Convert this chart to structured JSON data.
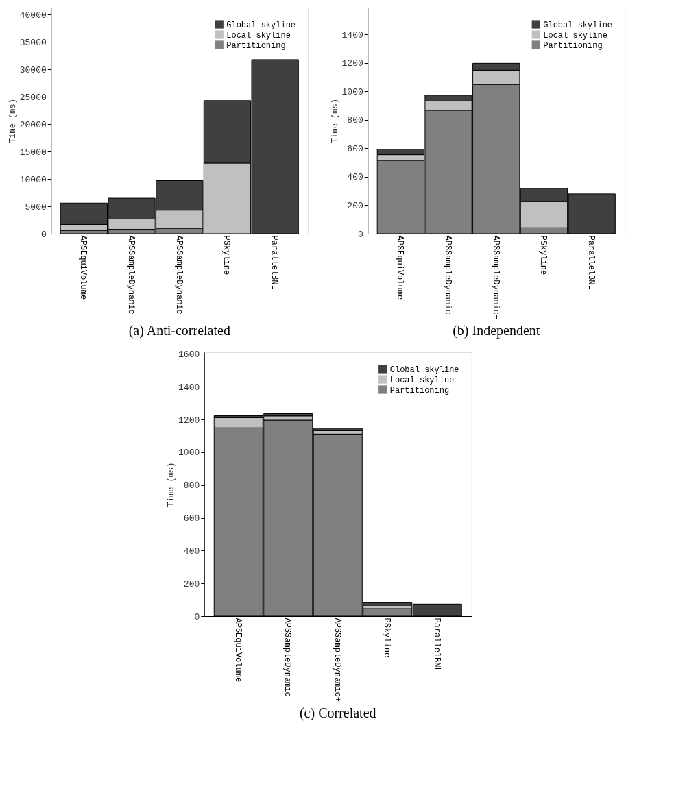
{
  "chart_data": [
    {
      "type": "bar",
      "title": "(a) Anti-correlated",
      "ylabel": "Time (ms)",
      "stacked": true,
      "legend": "top right",
      "grid": false,
      "categories": [
        "APSEquiVolume",
        "APSSampleDynamic",
        "APSSampleDynamic+",
        "PSkyline",
        "ParallelBNL"
      ],
      "series": [
        {
          "name": "Partitioning",
          "color": "#808080",
          "values": [
            600,
            800,
            1000,
            null,
            null
          ]
        },
        {
          "name": "Local skyline",
          "color": "#c0c0c0",
          "values": [
            1100,
            1900,
            3300,
            12900,
            null
          ]
        },
        {
          "name": "Global skyline",
          "color": "#404040",
          "values": [
            3900,
            3800,
            5400,
            11400,
            31800
          ]
        }
      ],
      "ylim": [
        0,
        41300
      ],
      "yticks": [
        0,
        5000,
        10000,
        15000,
        20000,
        25000,
        30000,
        35000,
        40000
      ]
    },
    {
      "type": "bar",
      "title": "(b) Independent",
      "ylabel": "Time (ms)",
      "stacked": true,
      "legend": "top right",
      "grid": false,
      "categories": [
        "APSEquiVolume",
        "APSSampleDynamic",
        "APSSampleDynamic+",
        "PSkyline",
        "ParallelBNL"
      ],
      "series": [
        {
          "name": "Partitioning",
          "color": "#808080",
          "values": [
            516,
            868,
            1050,
            42,
            null
          ]
        },
        {
          "name": "Local skyline",
          "color": "#c0c0c0",
          "values": [
            40,
            65,
            100,
            185,
            null
          ]
        },
        {
          "name": "Global skyline",
          "color": "#404040",
          "values": [
            39,
            41,
            48,
            92,
            280
          ]
        }
      ],
      "ylim": [
        0,
        1590
      ],
      "yticks": [
        0,
        200,
        400,
        600,
        800,
        1000,
        1200,
        1400
      ]
    },
    {
      "type": "bar",
      "title": "(c) Correlated",
      "ylabel": "Time (ms)",
      "stacked": true,
      "legend": "top right",
      "grid": false,
      "categories": [
        "APSEquiVolume",
        "APSSampleDynamic",
        "APSSampleDynamic+",
        "PSkyline",
        "ParallelBNL"
      ],
      "series": [
        {
          "name": "Partitioning",
          "color": "#808080",
          "values": [
            1149,
            1196,
            1111,
            46,
            null
          ]
        },
        {
          "name": "Local skyline",
          "color": "#c0c0c0",
          "values": [
            62,
            26,
            21,
            21,
            null
          ]
        },
        {
          "name": "Global skyline",
          "color": "#404040",
          "values": [
            12,
            14,
            15,
            15,
            74
          ]
        }
      ],
      "ylim": [
        0,
        1610
      ],
      "yticks": [
        0,
        200,
        400,
        600,
        800,
        1000,
        1200,
        1400,
        1600
      ]
    }
  ]
}
